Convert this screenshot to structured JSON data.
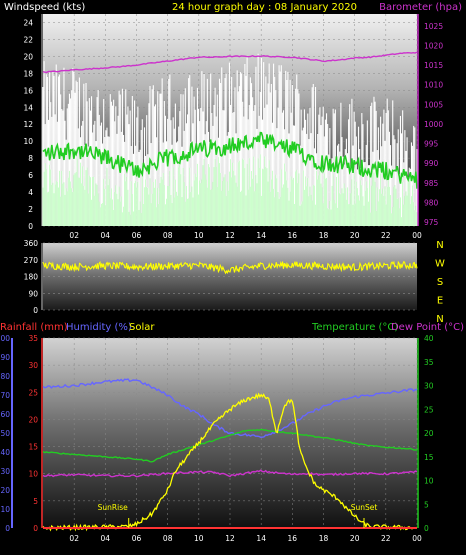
{
  "title": "24 hour graph day : 08 January 2020",
  "colors": {
    "bg": "#000000",
    "gust": "#ffffff",
    "wind": "#ccffcc",
    "avg": "#22cc22",
    "pressure": "#cc33cc",
    "direction": "#ffff00",
    "temperature": "#22cc22",
    "dew_point": "#cc33cc",
    "humidity": "#6666ff",
    "solar": "#ffff00",
    "rain": "#ff3333"
  },
  "chart_data": [
    {
      "type": "line",
      "labels": {
        "left": "Windspeed (kts)",
        "right": "Barometer (hpa)"
      },
      "x_ticks": [
        "02",
        "04",
        "06",
        "08",
        "10",
        "12",
        "14",
        "16",
        "18",
        "20",
        "22",
        "00"
      ],
      "y_left": {
        "ticks": [
          "0",
          "2",
          "4",
          "6",
          "8",
          "10",
          "12",
          "14",
          "16",
          "18",
          "20",
          "22",
          "24"
        ],
        "ylim": [
          0,
          25
        ]
      },
      "y_right": {
        "ticks": [
          "975",
          "980",
          "985",
          "990",
          "995",
          "1000",
          "1005",
          "1010",
          "1015",
          "1020",
          "1025"
        ],
        "ylim": [
          974,
          1028
        ]
      },
      "series": [
        {
          "key": "gust",
          "axis": "left",
          "x": [
            0,
            2,
            4,
            6,
            8,
            10,
            12,
            14,
            16,
            18,
            20,
            22,
            24
          ],
          "y": [
            15,
            14.5,
            13,
            11,
            13.5,
            14,
            15,
            16,
            14.5,
            12,
            11,
            11,
            9
          ]
        },
        {
          "key": "wind",
          "axis": "left",
          "x": [
            0,
            2,
            4,
            6,
            8,
            10,
            12,
            14,
            16,
            18,
            20,
            22,
            24
          ],
          "y": [
            5.5,
            5.5,
            4.5,
            3.5,
            5,
            5.5,
            6,
            6,
            5,
            4.5,
            4,
            4,
            3
          ]
        },
        {
          "key": "avg",
          "axis": "left",
          "x": [
            0,
            2,
            4,
            6,
            8,
            10,
            12,
            14,
            16,
            18,
            20,
            22,
            24
          ],
          "y": [
            8.5,
            9,
            8,
            6.5,
            8,
            9,
            9.5,
            10,
            9,
            7.5,
            7,
            6.5,
            5.5
          ]
        },
        {
          "key": "pressure",
          "axis": "right",
          "x": [
            0,
            1,
            2,
            3,
            4,
            5,
            6,
            7,
            8,
            9,
            10,
            11,
            12,
            13,
            14,
            15,
            16,
            17,
            18,
            19,
            20,
            21,
            22,
            23,
            24
          ],
          "y": [
            1013.2,
            1013.4,
            1013.8,
            1014,
            1014.3,
            1014.6,
            1015,
            1015.5,
            1016,
            1016.5,
            1017,
            1017,
            1017.2,
            1017.2,
            1017.3,
            1017.1,
            1017,
            1016.5,
            1016,
            1016.3,
            1016.8,
            1017,
            1017.5,
            1018,
            1018.2
          ]
        }
      ]
    },
    {
      "type": "line",
      "y_ticks": [
        "360",
        "270",
        "180",
        "90",
        "0"
      ],
      "ylim": [
        0,
        360
      ],
      "compass": [
        "N",
        "W",
        "S",
        "E",
        "N"
      ],
      "series": [
        {
          "key": "direction",
          "x": [
            0,
            2,
            4,
            6,
            8,
            10,
            12,
            14,
            16,
            18,
            20,
            22,
            24
          ],
          "y": [
            240,
            232,
            238,
            232,
            236,
            240,
            214,
            238,
            242,
            236,
            230,
            238,
            242
          ]
        }
      ]
    },
    {
      "type": "line",
      "labels": {
        "rainfall": "Rainfall (mm)",
        "humidity": "Humidity (%)",
        "solar": "Solar",
        "temperature": "Temperature (°C)",
        "dew_point": "Dew Point (°C)"
      },
      "x_ticks": [
        "02",
        "04",
        "06",
        "08",
        "10",
        "12",
        "14",
        "16",
        "18",
        "20",
        "22",
        "00"
      ],
      "y_humidity": {
        "ticks": [
          "0",
          "10",
          "20",
          "30",
          "40",
          "50",
          "60",
          "70",
          "80",
          "90",
          "100"
        ],
        "ylim": [
          0,
          100
        ]
      },
      "y_rain": {
        "ticks": [
          "0",
          "5",
          "10",
          "15",
          "20",
          "25",
          "30",
          "35"
        ],
        "ylim": [
          0,
          35
        ]
      },
      "y_temp": {
        "ticks": [
          "0",
          "5",
          "10",
          "15",
          "20",
          "25",
          "30",
          "35",
          "40"
        ],
        "ylim": [
          0,
          40
        ]
      },
      "annotations": [
        {
          "text": "SunRise",
          "x": 5.5
        },
        {
          "text": "SunSet",
          "x": 20.6
        }
      ],
      "series": [
        {
          "key": "humidity",
          "axis": "humidity",
          "x": [
            0,
            2,
            4,
            6,
            7,
            8,
            9,
            10,
            11,
            12,
            13,
            14,
            15,
            16,
            17,
            18,
            19,
            20,
            21,
            22,
            23,
            24
          ],
          "y": [
            74,
            75,
            77,
            78,
            74,
            70,
            64,
            60,
            54,
            50,
            49,
            48,
            51,
            55,
            60,
            64,
            67,
            69,
            70,
            71,
            72,
            73
          ]
        },
        {
          "key": "temperature",
          "axis": "temp",
          "x": [
            0,
            2,
            4,
            6,
            7,
            8,
            9,
            10,
            11,
            12,
            13,
            14,
            15,
            16,
            17,
            18,
            19,
            20,
            21,
            22,
            23,
            24
          ],
          "y": [
            16,
            15.5,
            15,
            14.5,
            14,
            15.5,
            16.5,
            17.5,
            18.5,
            19.5,
            20.5,
            20.7,
            20.3,
            20,
            19.5,
            19,
            18.5,
            17.8,
            17.3,
            17,
            16.8,
            16.5
          ]
        },
        {
          "key": "dew_point",
          "axis": "temp",
          "x": [
            0,
            2,
            4,
            6,
            8,
            10,
            11,
            12,
            13,
            14,
            15,
            16,
            17,
            18,
            20,
            22,
            24
          ],
          "y": [
            11,
            11.2,
            11,
            11,
            11.5,
            11.8,
            11.7,
            11,
            11.5,
            12,
            11.6,
            11.3,
            11.5,
            11.2,
            11.5,
            11.4,
            11.8
          ]
        },
        {
          "key": "solar",
          "axis": "temp",
          "x": [
            0,
            5.5,
            6,
            7,
            7.5,
            8,
            8.5,
            9,
            10,
            11,
            12,
            13,
            13.5,
            14,
            14.5,
            15,
            15.5,
            16,
            16.5,
            17,
            17.5,
            18,
            18.5,
            19,
            19.5,
            20,
            20.5,
            21,
            24
          ],
          "y": [
            0,
            0.3,
            0.8,
            3,
            5.5,
            8,
            12,
            14,
            18,
            22,
            25,
            27,
            27.5,
            28,
            27,
            20,
            26,
            27,
            16,
            12,
            9,
            8,
            7,
            6,
            4,
            2.5,
            1,
            0.3,
            0
          ]
        },
        {
          "key": "rain",
          "axis": "rain",
          "x": [
            0,
            24
          ],
          "y": [
            0,
            0
          ]
        }
      ]
    }
  ]
}
